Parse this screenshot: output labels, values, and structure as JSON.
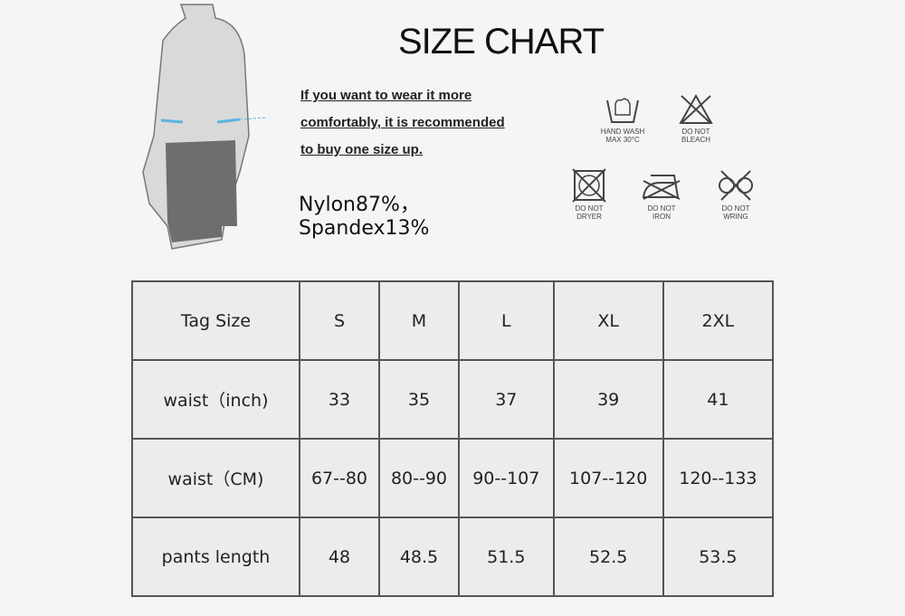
{
  "title": "SIZE CHART",
  "note_lines": [
    "If you want to wear it more",
    "comfortably, it is recommended",
    "to buy one size up."
  ],
  "material": [
    "Nylon87%，",
    "Spandex13%"
  ],
  "care": [
    {
      "icon": "hand-wash-icon",
      "line1": "HAND WASH",
      "line2": "MAX 30°C"
    },
    {
      "icon": "no-bleach-icon",
      "line1": "DO NOT",
      "line2": "BLEACH"
    },
    {
      "icon": "no-dryer-icon",
      "line1": "DO NOT",
      "line2": "DRYER"
    },
    {
      "icon": "no-iron-icon",
      "line1": "DO NOT",
      "line2": "IRON"
    },
    {
      "icon": "no-wring-icon",
      "line1": "DO NOT",
      "line2": "WRING"
    }
  ],
  "table": {
    "rows": [
      [
        "Tag Size",
        "S",
        "M",
        "L",
        "XL",
        "2XL"
      ],
      [
        "waist（inch)",
        "33",
        "35",
        "37",
        "39",
        "41"
      ],
      [
        "waist（CM)",
        "67--80",
        "80--90",
        "90--107",
        "107--120",
        "120--133"
      ],
      [
        "pants length",
        "48",
        "48.5",
        "51.5",
        "52.5",
        "53.5"
      ]
    ]
  }
}
